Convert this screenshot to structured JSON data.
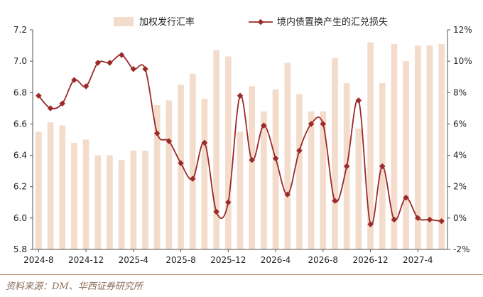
{
  "chart_data": {
    "type": "bar+line",
    "title": "",
    "source": "资料来源：DM、华西证券研究所",
    "legend": {
      "bar": "加权发行汇率",
      "line": "境内债置换产生的汇兑损失",
      "placement": "top"
    },
    "left_axis": {
      "min": 5.8,
      "max": 7.2,
      "ticks": [
        "5.8",
        "6.0",
        "6.2",
        "6.4",
        "6.6",
        "6.8",
        "7.0",
        "7.2"
      ]
    },
    "right_axis": {
      "min": -2,
      "max": 12,
      "ticks": [
        "-2%",
        "0%",
        "2%",
        "4%",
        "6%",
        "8%",
        "10%",
        "12%"
      ]
    },
    "x_tick_labels": [
      "2024-8",
      "2024-12",
      "2025-4",
      "2025-8",
      "2025-12",
      "2026-4",
      "2026-8",
      "2026-12",
      "2027-4"
    ],
    "x_tick_positions": [
      0,
      4,
      8,
      12,
      16,
      20,
      24,
      28,
      32
    ],
    "bar_color": "#f3dccb",
    "line_color": "#9b2a2a",
    "bar_series": {
      "name": "加权发行汇率",
      "values": [
        6.55,
        6.61,
        6.59,
        6.48,
        6.5,
        6.4,
        6.4,
        6.37,
        6.43,
        6.43,
        6.72,
        6.75,
        6.85,
        6.92,
        6.76,
        7.07,
        7.03,
        6.55,
        6.84,
        6.68,
        6.82,
        6.99,
        6.79,
        6.68,
        6.68,
        7.02,
        6.86,
        6.57,
        7.12,
        6.86,
        7.11,
        7.0,
        7.1,
        7.1,
        7.11
      ]
    },
    "line_series": {
      "name": "境内债置换产生的汇兑损失",
      "values": [
        7.8,
        7.0,
        7.3,
        8.8,
        8.4,
        9.9,
        9.9,
        10.4,
        9.5,
        9.5,
        5.4,
        4.9,
        3.5,
        2.5,
        4.8,
        0.4,
        1.0,
        7.8,
        3.7,
        5.9,
        3.8,
        1.5,
        4.3,
        6.0,
        6.0,
        1.1,
        3.3,
        7.5,
        -0.4,
        3.3,
        -0.1,
        1.3,
        0.0,
        -0.1,
        -0.2
      ]
    }
  }
}
